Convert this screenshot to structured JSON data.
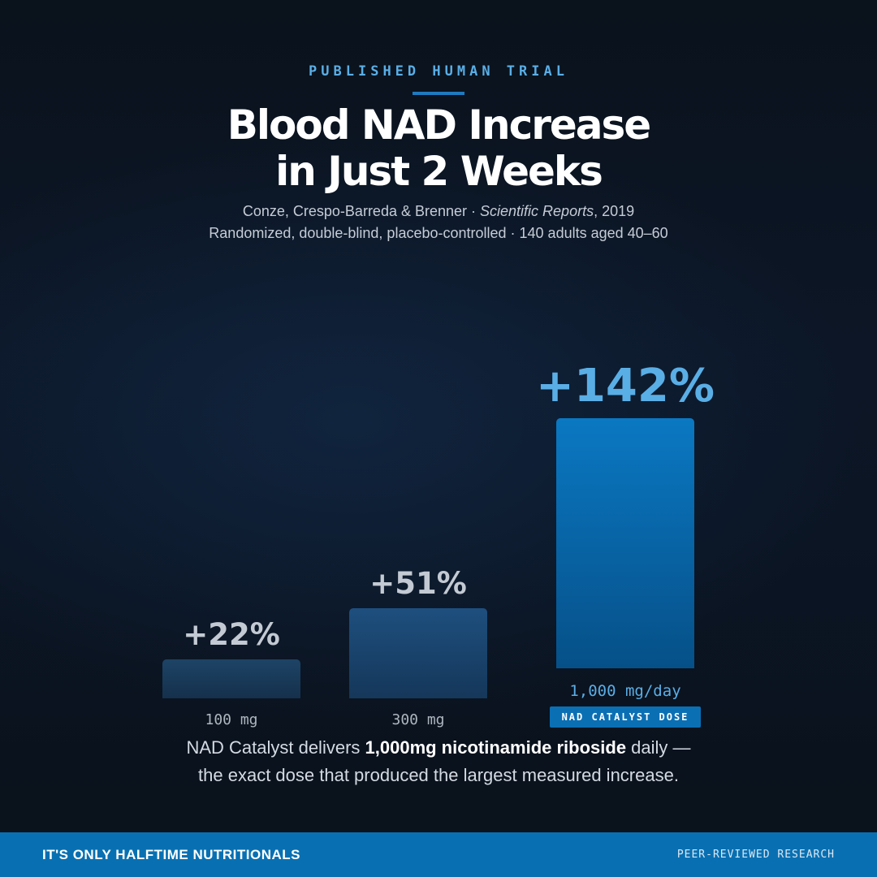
{
  "header": {
    "eyebrow": "PUBLISHED HUMAN TRIAL",
    "title_line1": "Blood NAD Increase",
    "title_line2": "in Just 2 Weeks",
    "citation_authors": "Conze, Crespo-Barreda & Brenner · ",
    "citation_journal": "Scientific Reports",
    "citation_year": ", 2019",
    "citation_line2": "Randomized, double-blind, placebo-controlled · 140 adults aged 40–60"
  },
  "chart_data": {
    "type": "bar",
    "title": "Blood NAD Increase in Just 2 Weeks",
    "categories": [
      "100 mg",
      "300 mg",
      "1,000 mg/day"
    ],
    "values": [
      22,
      51,
      142
    ],
    "value_labels": [
      "+22%",
      "+51%",
      "+142%"
    ],
    "unit": "%",
    "highlight_index": 2,
    "highlight_badge": "NAD CATALYST DOSE",
    "grid": false,
    "legend": "none",
    "colors": {
      "bar_dim": "#1b4670",
      "bar_hero": "#0a6fb4",
      "label_dim": "#c3cad3",
      "label_hero": "#5aaee6"
    }
  },
  "tagline": {
    "pre": "NAD Catalyst delivers ",
    "bold": "1,000mg nicotinamide riboside",
    "post": " daily —",
    "line2": "the exact dose that produced the largest measured increase."
  },
  "footer": {
    "brand": "IT'S ONLY HALFTIME NUTRITIONALS",
    "tag": "PEER-REVIEWED RESEARCH"
  },
  "colors": {
    "background": "#0b1422",
    "accent": "#5aaee6",
    "brand_blue": "#0870b2"
  }
}
